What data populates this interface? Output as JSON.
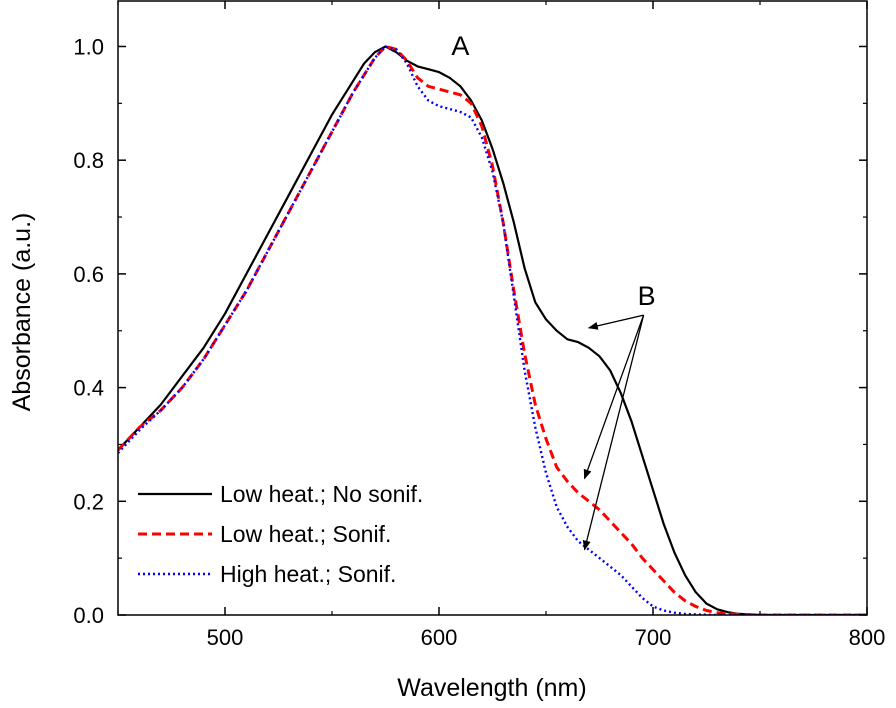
{
  "chart_data": {
    "type": "line",
    "title": "",
    "xlabel": "Wavelength (nm)",
    "ylabel": "Absorbance (a.u.)",
    "xlim": [
      450,
      800
    ],
    "ylim": [
      0.0,
      1.08
    ],
    "xticks": [
      500,
      600,
      700,
      800
    ],
    "xtick_labels": [
      "500",
      "600",
      "700",
      "800"
    ],
    "yticks": [
      0.0,
      0.2,
      0.4,
      0.6,
      0.8,
      1.0
    ],
    "ytick_labels": [
      "0.0",
      "0.2",
      "0.4",
      "0.6",
      "0.8",
      "1.0"
    ],
    "grid": false,
    "legend_position": "bottom-left",
    "series": [
      {
        "name": "Low heat.; No sonif.",
        "color": "#000000",
        "style": "solid",
        "x": [
          450,
          460,
          470,
          480,
          490,
          500,
          510,
          520,
          530,
          540,
          550,
          560,
          565,
          570,
          575,
          580,
          585,
          590,
          595,
          600,
          605,
          610,
          615,
          620,
          625,
          630,
          635,
          640,
          645,
          650,
          655,
          660,
          665,
          670,
          675,
          680,
          685,
          690,
          695,
          700,
          705,
          710,
          715,
          720,
          725,
          730,
          735,
          740,
          745,
          750,
          760,
          770,
          780,
          790,
          800
        ],
        "y": [
          0.29,
          0.33,
          0.37,
          0.42,
          0.47,
          0.53,
          0.6,
          0.67,
          0.74,
          0.81,
          0.88,
          0.94,
          0.97,
          0.99,
          1.0,
          0.99,
          0.975,
          0.965,
          0.96,
          0.955,
          0.945,
          0.93,
          0.905,
          0.87,
          0.82,
          0.76,
          0.69,
          0.61,
          0.55,
          0.52,
          0.5,
          0.485,
          0.48,
          0.47,
          0.455,
          0.43,
          0.39,
          0.34,
          0.28,
          0.22,
          0.16,
          0.11,
          0.07,
          0.04,
          0.02,
          0.01,
          0.005,
          0.002,
          0.001,
          0.0,
          0.0,
          0.0,
          0.0,
          0.0,
          0.0
        ]
      },
      {
        "name": "Low heat.; Sonif.",
        "color": "#ff0000",
        "style": "dashed",
        "x": [
          450,
          460,
          470,
          480,
          490,
          500,
          510,
          520,
          530,
          540,
          550,
          560,
          570,
          575,
          580,
          585,
          590,
          595,
          600,
          605,
          610,
          615,
          620,
          625,
          630,
          635,
          640,
          645,
          650,
          655,
          660,
          665,
          670,
          675,
          680,
          685,
          690,
          695,
          700,
          705,
          710,
          715,
          720,
          725,
          730,
          740,
          750,
          760,
          780,
          800
        ],
        "y": [
          0.29,
          0.33,
          0.36,
          0.4,
          0.45,
          0.51,
          0.57,
          0.64,
          0.71,
          0.78,
          0.85,
          0.92,
          0.98,
          1.0,
          0.995,
          0.975,
          0.945,
          0.93,
          0.925,
          0.92,
          0.915,
          0.9,
          0.86,
          0.79,
          0.69,
          0.57,
          0.46,
          0.37,
          0.31,
          0.26,
          0.235,
          0.215,
          0.2,
          0.185,
          0.165,
          0.145,
          0.125,
          0.1,
          0.08,
          0.06,
          0.04,
          0.025,
          0.015,
          0.008,
          0.004,
          0.001,
          0.0,
          0.0,
          0.0,
          0.0
        ]
      },
      {
        "name": "High heat.; Sonif.",
        "color": "#0000ff",
        "style": "dotted",
        "x": [
          450,
          460,
          470,
          480,
          490,
          500,
          510,
          520,
          530,
          540,
          550,
          560,
          570,
          575,
          580,
          585,
          590,
          595,
          600,
          605,
          610,
          615,
          620,
          625,
          630,
          635,
          640,
          645,
          650,
          655,
          660,
          665,
          670,
          675,
          680,
          685,
          690,
          695,
          700,
          705,
          710,
          715,
          720,
          730,
          740,
          750,
          760,
          780,
          800
        ],
        "y": [
          0.285,
          0.325,
          0.36,
          0.4,
          0.45,
          0.51,
          0.57,
          0.64,
          0.71,
          0.78,
          0.85,
          0.92,
          0.98,
          1.0,
          0.995,
          0.97,
          0.93,
          0.905,
          0.895,
          0.89,
          0.885,
          0.875,
          0.84,
          0.78,
          0.69,
          0.56,
          0.43,
          0.33,
          0.25,
          0.19,
          0.155,
          0.13,
          0.115,
          0.1,
          0.085,
          0.07,
          0.05,
          0.03,
          0.015,
          0.008,
          0.004,
          0.002,
          0.001,
          0.0,
          0.0,
          0.0,
          0.0,
          0.0,
          0.0
        ]
      }
    ],
    "annotations": [
      {
        "label": "A",
        "x": 610,
        "y": 0.985
      },
      {
        "label": "B",
        "x": 697,
        "y": 0.545,
        "arrows_to": [
          {
            "x": 670,
            "y": 0.505
          },
          {
            "x": 668,
            "y": 0.24
          },
          {
            "x": 668,
            "y": 0.115
          }
        ]
      }
    ]
  }
}
